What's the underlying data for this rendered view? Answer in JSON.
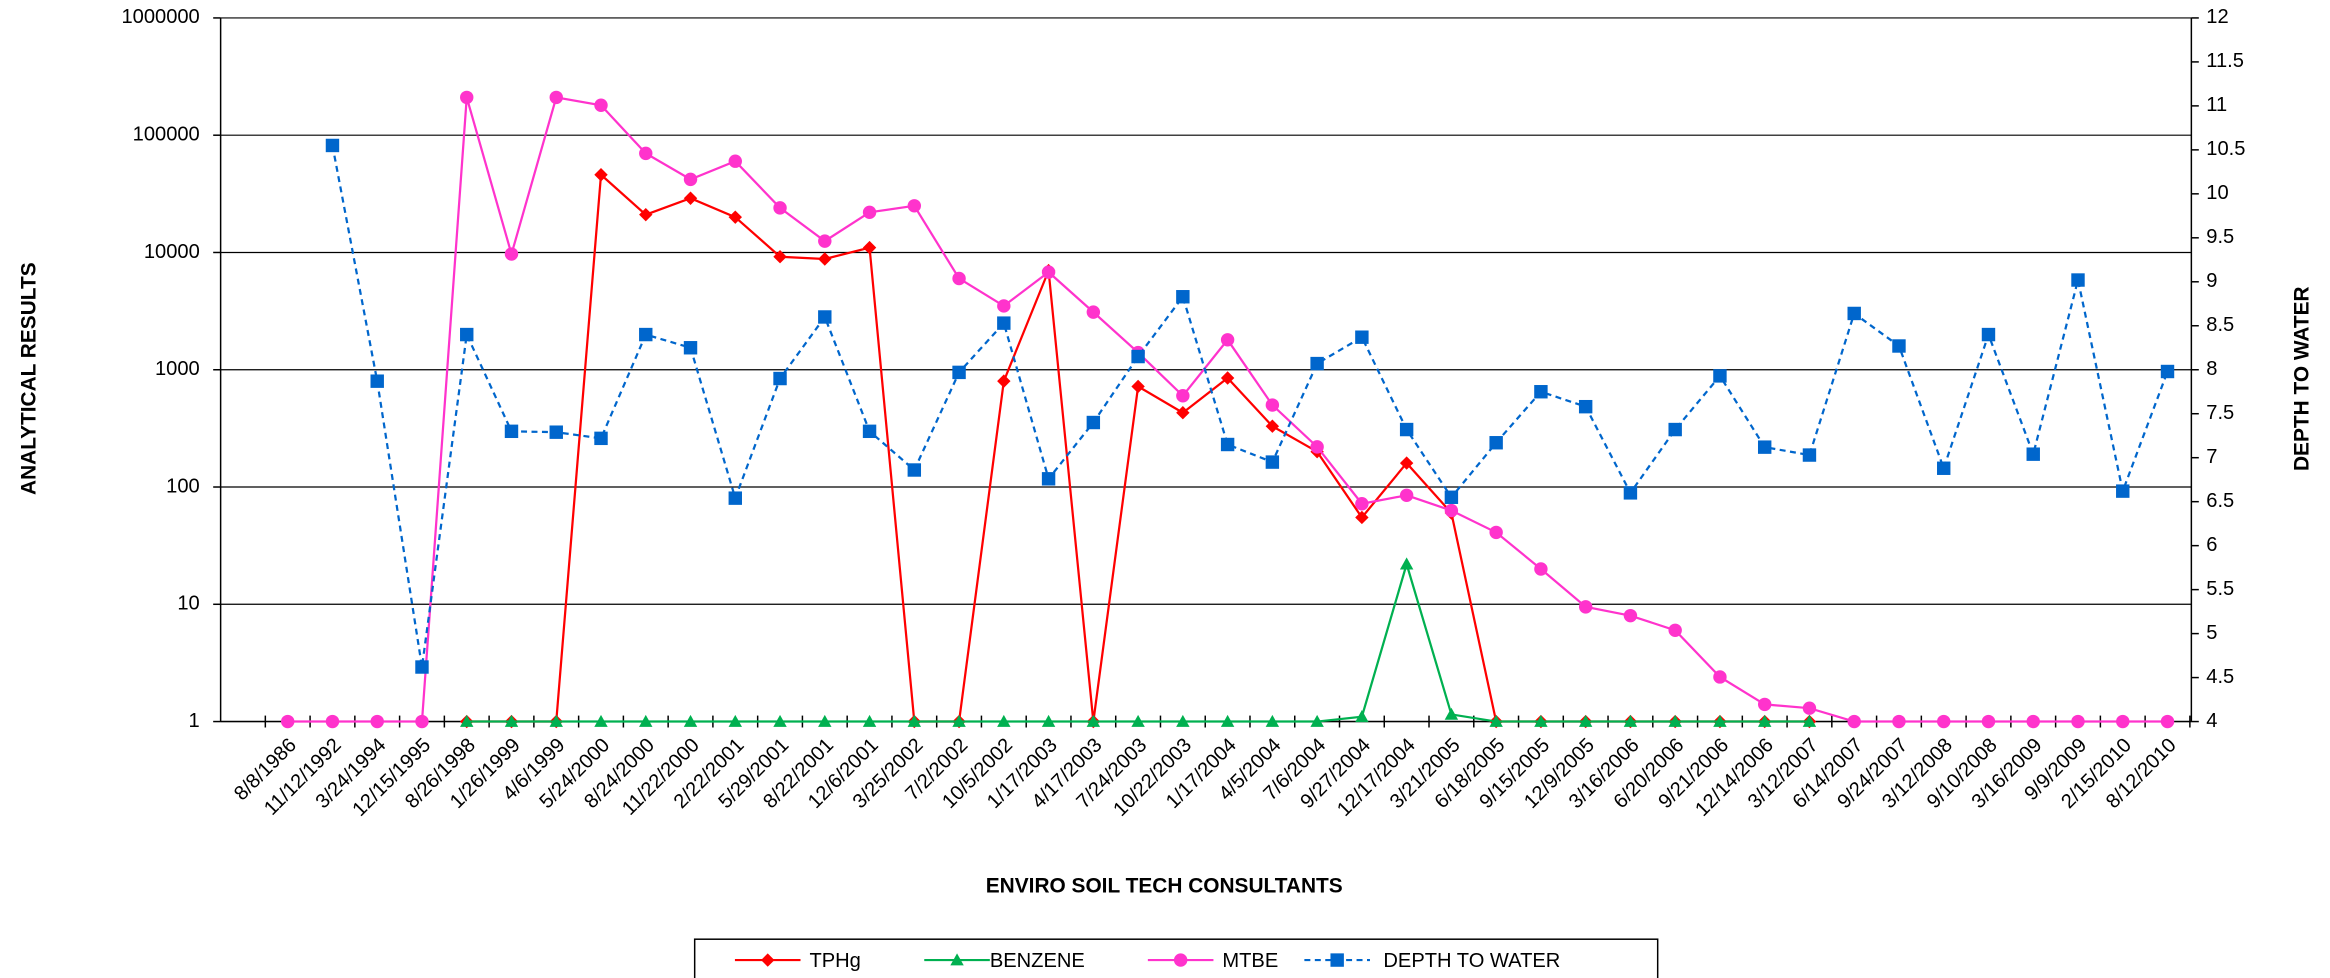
{
  "chart_data": {
    "type": "line",
    "x_label": "ENVIRO SOIL TECH CONSULTANTS",
    "y_label": "ANALYTICAL RESULTS",
    "y2_label": "DEPTH TO WATER",
    "log_y": true,
    "grid": true,
    "legend": "bottom",
    "categories": [
      "8/8/1986",
      "11/12/1992",
      "3/24/1994",
      "12/15/1995",
      "8/26/1998",
      "1/26/1999",
      "4/6/1999",
      "5/24/2000",
      "8/24/2000",
      "11/22/2000",
      "2/22/2001",
      "5/29/2001",
      "8/22/2001",
      "12/6/2001",
      "3/25/2002",
      "7/2/2002",
      "10/5/2002",
      "1/17/2003",
      "4/17/2003",
      "7/24/2003",
      "10/22/2003",
      "1/17/2004",
      "4/5/2004",
      "7/6/2004",
      "9/27/2004",
      "12/17/2004",
      "3/21/2005",
      "6/18/2005",
      "9/15/2005",
      "12/9/2005",
      "3/16/2006",
      "6/20/2006",
      "9/21/2006",
      "12/14/2006",
      "3/12/2007",
      "6/14/2007",
      "9/24/2007",
      "3/12/2008",
      "9/10/2008",
      "3/16/2009",
      "9/9/2009",
      "2/15/2010",
      "8/12/2010"
    ],
    "ylim": [
      1,
      1000000
    ],
    "yticks": [
      1,
      10,
      100,
      1000,
      10000,
      100000,
      1000000
    ],
    "y2lim": [
      4,
      12
    ],
    "y2ticks": [
      4,
      4.5,
      5,
      5.5,
      6,
      6.5,
      7,
      7.5,
      8,
      8.5,
      9,
      9.5,
      10,
      10.5,
      11,
      11.5,
      12
    ],
    "series": [
      {
        "name": "TPHg",
        "color": "#ff0000",
        "marker": "diamond",
        "dashed": false,
        "values": [
          null,
          null,
          null,
          null,
          1,
          1,
          1,
          46000,
          21000,
          29000,
          20000,
          9200,
          8800,
          11000,
          1,
          1,
          800,
          7000,
          1,
          720,
          430,
          850,
          330,
          200,
          55,
          160,
          60,
          1,
          1,
          1,
          1,
          1,
          1,
          1,
          1,
          null,
          null,
          null,
          null,
          null,
          null,
          null,
          null
        ]
      },
      {
        "name": "BENZENE",
        "color": "#00b050",
        "marker": "triangle",
        "dashed": false,
        "values": [
          null,
          null,
          null,
          null,
          1,
          1,
          1,
          1,
          1,
          1,
          1,
          1,
          1,
          1,
          1,
          1,
          1,
          1,
          1,
          1,
          1,
          1,
          1,
          1,
          1.1,
          22,
          1.15,
          1,
          1,
          1,
          1,
          1,
          1,
          1,
          1,
          null,
          null,
          null,
          null,
          null,
          null,
          null,
          null
        ]
      },
      {
        "name": "MTBE",
        "color": "#ff33cc",
        "marker": "circle",
        "dashed": false,
        "values": [
          1,
          1,
          1,
          1,
          210000,
          9700,
          210000,
          180000,
          70000,
          42000,
          60000,
          24000,
          12500,
          22000,
          25000,
          6000,
          3500,
          6800,
          3100,
          1400,
          600,
          1800,
          500,
          220,
          72,
          85,
          63,
          41,
          20,
          9.5,
          8,
          6,
          2.4,
          1.4,
          1.3,
          1,
          1,
          1,
          1,
          1,
          1,
          1,
          1
        ]
      },
      {
        "name": "DEPTH TO WATER",
        "color": "#0066cc",
        "marker": "square",
        "dashed": true,
        "axis": "y2",
        "values": [
          null,
          10.55,
          7.87,
          4.62,
          8.4,
          7.3,
          7.29,
          7.22,
          8.4,
          8.25,
          6.54,
          7.9,
          8.6,
          7.3,
          6.86,
          7.97,
          8.53,
          6.76,
          7.4,
          8.15,
          8.83,
          7.15,
          6.95,
          8.07,
          8.37,
          7.32,
          6.55,
          7.17,
          7.75,
          7.58,
          6.6,
          7.32,
          7.93,
          7.12,
          7.03,
          8.64,
          8.27,
          6.88,
          8.4,
          7.04,
          9.02,
          6.62,
          7.98
        ]
      }
    ]
  }
}
